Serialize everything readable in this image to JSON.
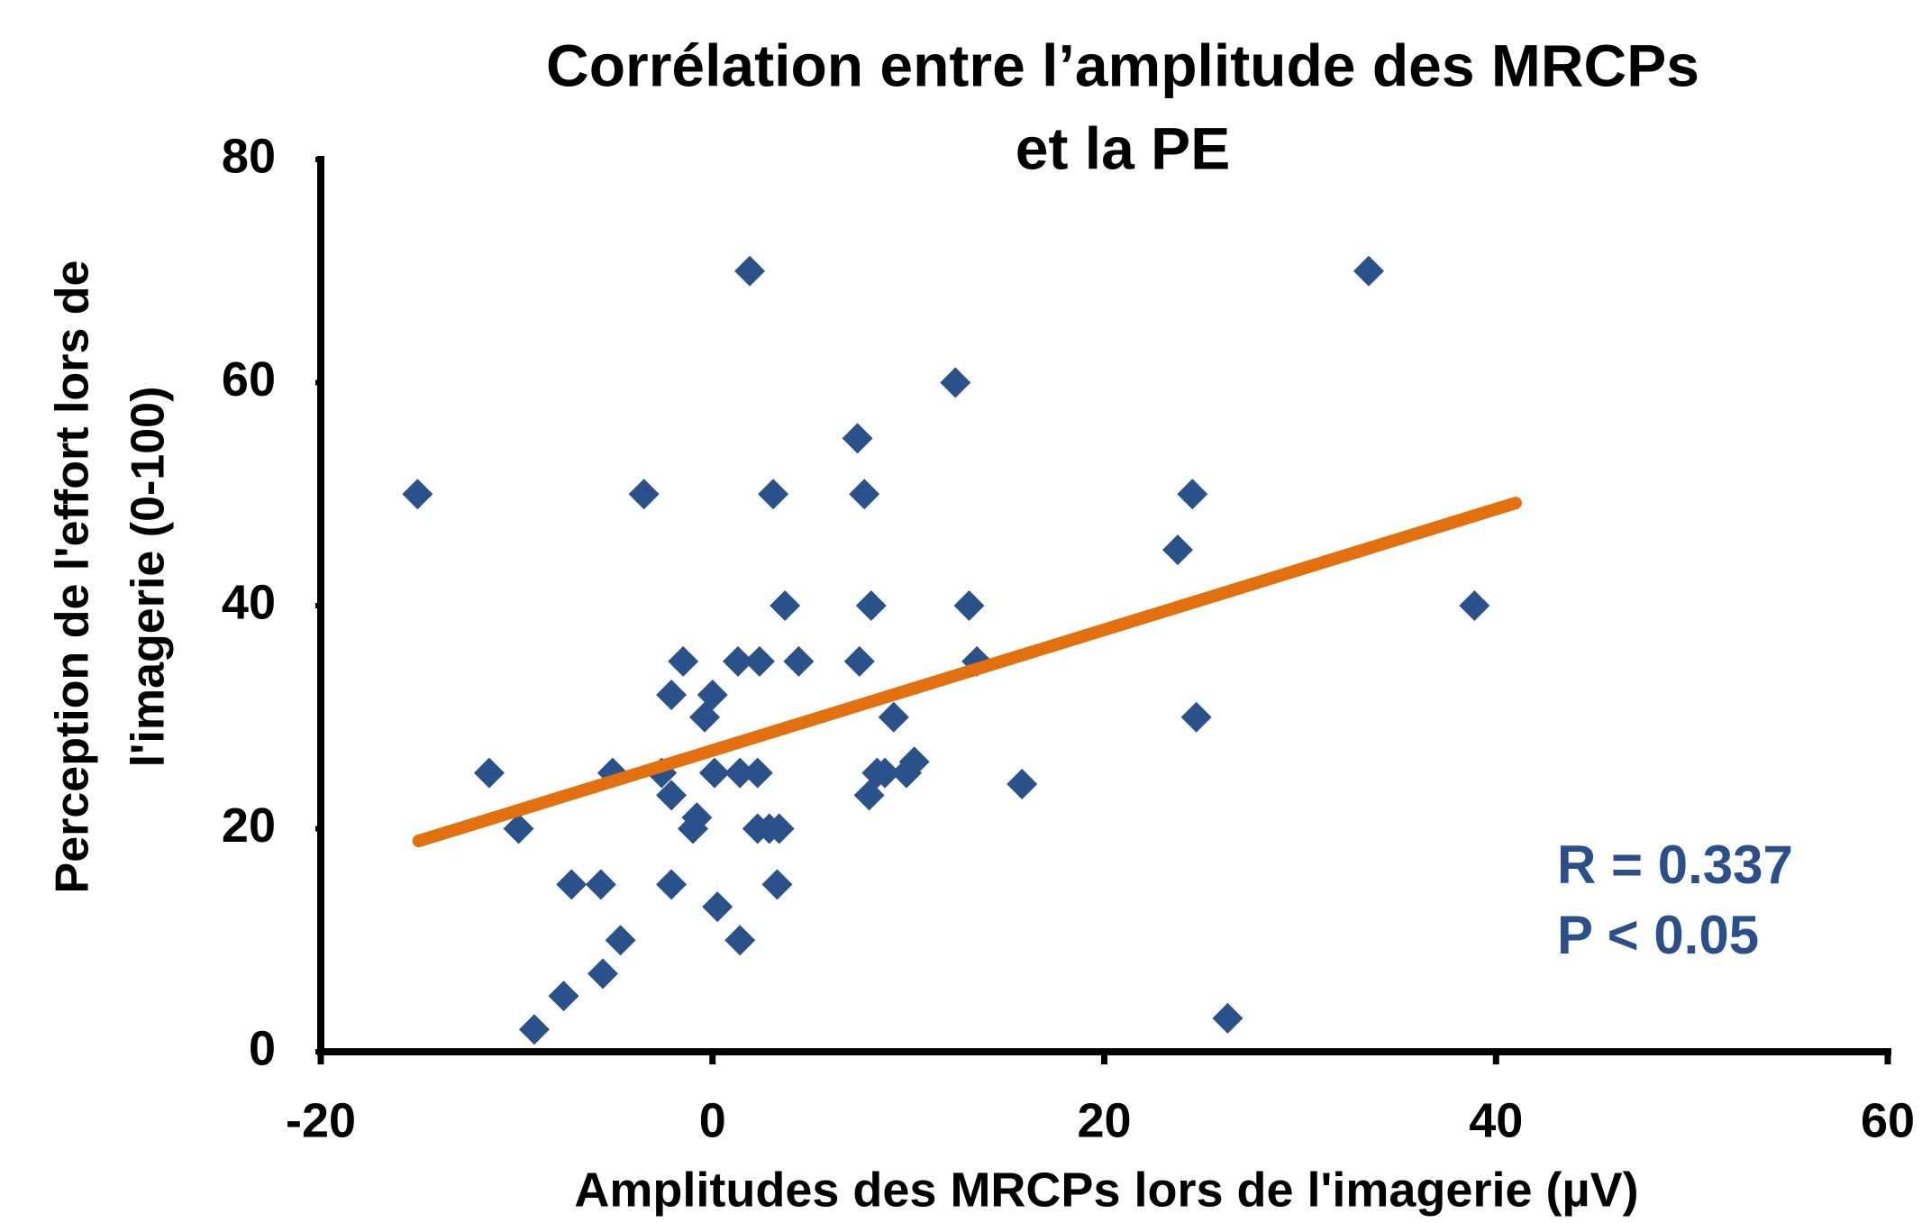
{
  "chart_data": {
    "type": "scatter",
    "title": [
      "Corrélation entre l’amplitude des MRCPs",
      "et la PE"
    ],
    "x_label": "Amplitudes des MRCPs lors de l'imagerie (µV)",
    "y_label": [
      "Perception de l'effort lors de",
      "l'imagerie (0-100)"
    ],
    "annotations": [
      "R = 0.337",
      "P < 0.05"
    ],
    "annotation_color": "#2b5089",
    "xlim": [
      -20,
      60
    ],
    "xticks": [
      -20,
      0,
      20,
      40,
      60
    ],
    "ylim": [
      0,
      80
    ],
    "yticks": [
      0,
      20,
      40,
      60,
      80
    ],
    "series": [
      {
        "name": "MRCP",
        "color": "#2a5189",
        "x": [
          -15.06,
          -11.4,
          -9.9,
          -9.1,
          -7.6,
          -7.2,
          -5.7,
          -5.6,
          -5.1,
          -4.7,
          -3.5,
          -2.6,
          -2.1,
          -2.1,
          -2.1,
          -1.5,
          -1.0,
          -0.8,
          -0.4,
          0,
          0.1,
          0.25,
          1.3,
          1.4,
          1.4,
          1.9,
          2.3,
          2.4,
          2.3,
          2.9,
          3.1,
          3.4,
          3.3,
          3.7,
          4.4,
          7.4,
          7.5,
          7.75,
          8.0,
          8.1,
          8.4,
          8.8,
          9.25,
          9.9,
          10.3,
          12.4,
          13.1,
          13.5,
          15.8,
          23.75,
          24.5,
          24.7,
          26.3,
          33.5,
          38.9
        ],
        "values": [
          50,
          25,
          20,
          2,
          5,
          15,
          15,
          7,
          25,
          10,
          50,
          25,
          23,
          15,
          32,
          35,
          20,
          21,
          30,
          32,
          25,
          13,
          35,
          25,
          10,
          70,
          25,
          35,
          20,
          20,
          50,
          20,
          15,
          40,
          35,
          55,
          35,
          50,
          23,
          40,
          25,
          25,
          30,
          25,
          26,
          60,
          40,
          35,
          24,
          45,
          50,
          30,
          3,
          70,
          40
        ]
      }
    ],
    "trendline": {
      "color": "#e3700f",
      "x": [
        -15,
        41
      ],
      "values": [
        18.9,
        49.2
      ]
    }
  }
}
